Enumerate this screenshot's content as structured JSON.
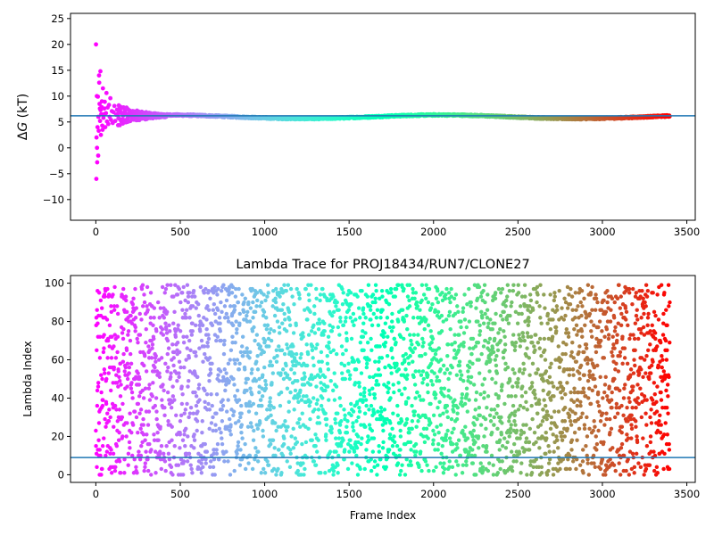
{
  "chart_data": [
    {
      "type": "scatter",
      "title": "",
      "xlabel": "",
      "ylabel_prefix": "Δ",
      "ylabel_var": "G",
      "ylabel_suffix": " (kT)",
      "xlim": [
        -150,
        3550
      ],
      "ylim": [
        -14,
        26
      ],
      "xticks": [
        0,
        500,
        1000,
        1500,
        2000,
        2500,
        3000,
        3500
      ],
      "yticks": [
        -10,
        -5,
        0,
        5,
        10,
        15,
        20,
        25
      ],
      "hline": 6.2,
      "hline_color": "#1f77b4",
      "colormap": "rainbow",
      "n_frames": 3400,
      "early_points": [
        [
          1,
          20
        ],
        [
          3,
          -6
        ],
        [
          4,
          2
        ],
        [
          6,
          10
        ],
        [
          7,
          0
        ],
        [
          8,
          -2.8
        ],
        [
          10,
          4
        ],
        [
          12,
          9.9
        ],
        [
          14,
          -1.5
        ],
        [
          15,
          6
        ],
        [
          17,
          3.3
        ],
        [
          19,
          14
        ],
        [
          20,
          12.6
        ],
        [
          22,
          8.5
        ],
        [
          24,
          7.6
        ],
        [
          25,
          5.2
        ],
        [
          27,
          14.8
        ],
        [
          28,
          7.3
        ],
        [
          30,
          2.5
        ],
        [
          32,
          6.5
        ],
        [
          34,
          7.9
        ],
        [
          36,
          9
        ],
        [
          38,
          4.3
        ],
        [
          40,
          3.5
        ],
        [
          42,
          11.5
        ],
        [
          45,
          5.8
        ],
        [
          48,
          6.5
        ],
        [
          50,
          7.6
        ],
        [
          53,
          8.9
        ],
        [
          56,
          4
        ],
        [
          60,
          6.7
        ],
        [
          63,
          10.6
        ],
        [
          66,
          5.1
        ],
        [
          70,
          7.8
        ],
        [
          74,
          4.6
        ],
        [
          78,
          8.3
        ],
        [
          82,
          6
        ],
        [
          86,
          9.6
        ],
        [
          90,
          5.4
        ],
        [
          95,
          7.1
        ],
        [
          100,
          4.8
        ],
        [
          105,
          6.9
        ],
        [
          110,
          8.1
        ],
        [
          115,
          5.2
        ],
        [
          120,
          6.4
        ],
        [
          126,
          7.4
        ]
      ]
    },
    {
      "type": "scatter",
      "title": "Lambda Trace for PROJ18434/RUN7/CLONE27",
      "xlabel": "Frame Index",
      "ylabel": "Lambda Index",
      "xlim": [
        -150,
        3550
      ],
      "ylim": [
        -4,
        104
      ],
      "xticks": [
        0,
        500,
        1000,
        1500,
        2000,
        2500,
        3000,
        3500
      ],
      "yticks": [
        0,
        20,
        40,
        60,
        80,
        100
      ],
      "hline": 9,
      "hline_color": "#1f77b4",
      "colormap": "rainbow",
      "n_frames": 3400,
      "lambda_min": 0,
      "lambda_max": 99
    }
  ]
}
